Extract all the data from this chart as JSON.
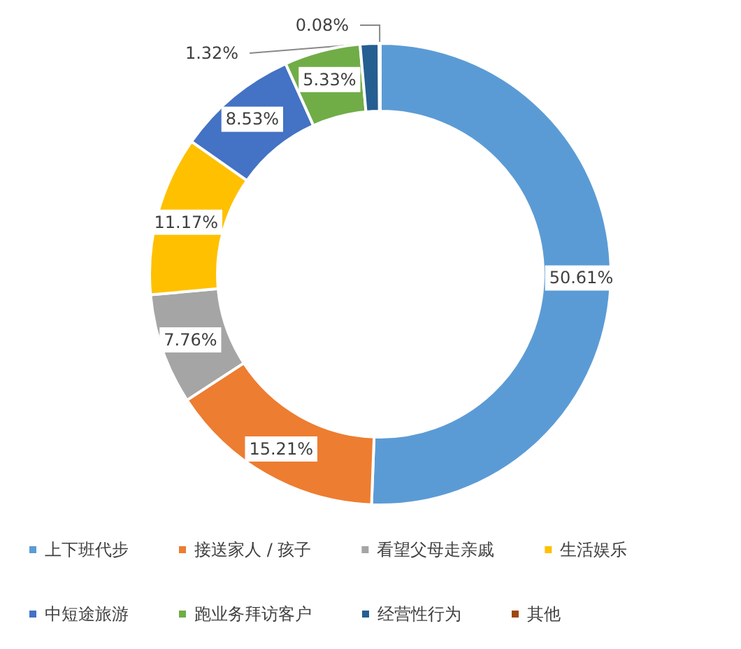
{
  "chart_data": {
    "type": "donut",
    "categories": [
      "上下班代步",
      "接送家人 / 孩子",
      "看望父母走亲戚",
      "生活娱乐",
      "中短途旅游",
      "跑业务拜访客户",
      "经营性行为",
      "其他"
    ],
    "values": [
      50.61,
      15.21,
      7.76,
      11.17,
      8.53,
      5.33,
      1.32,
      0.08
    ],
    "colors": [
      "#5b9bd5",
      "#ed7d31",
      "#a5a5a5",
      "#ffc000",
      "#4472c4",
      "#70ad47",
      "#255e91",
      "#9e480e"
    ],
    "value_labels": [
      "50.61%",
      "15.21%",
      "7.76%",
      "11.17%",
      "8.53%",
      "5.33%",
      "1.32%",
      "0.08%"
    ],
    "legend": "bottom"
  }
}
